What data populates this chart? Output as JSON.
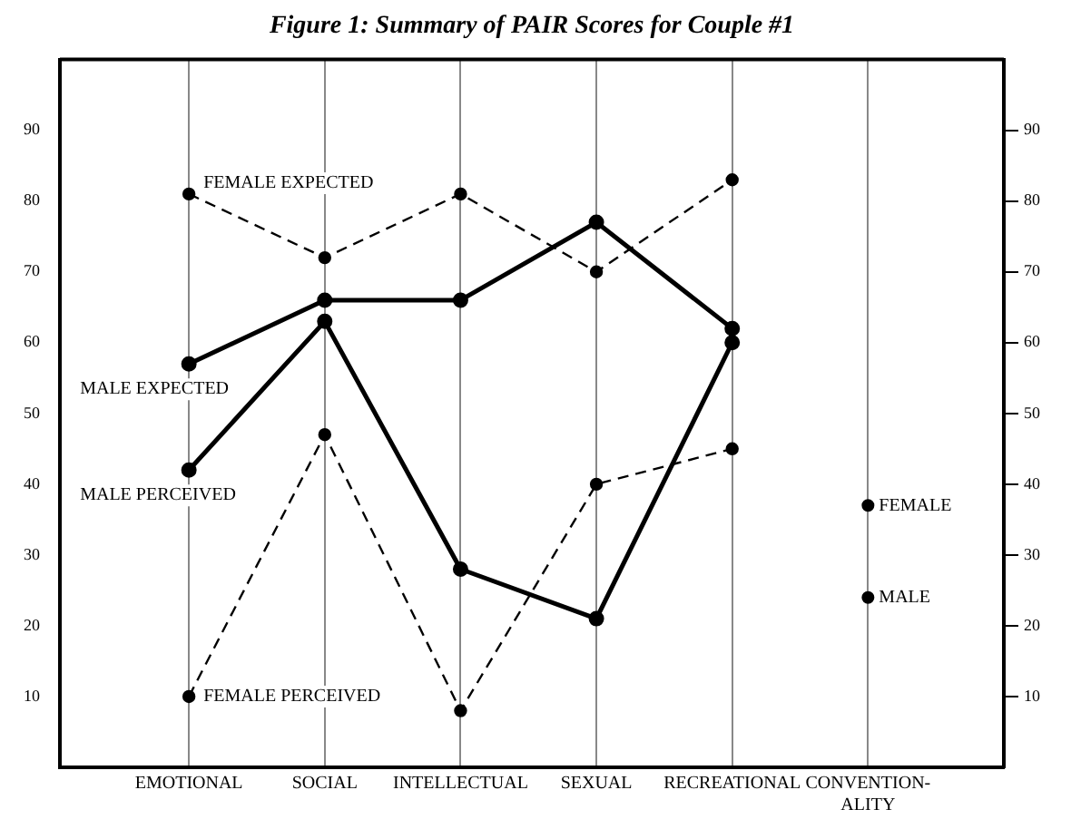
{
  "chart_data": {
    "type": "line",
    "title": "Figure 1: Summary of PAIR Scores for Couple #1",
    "categories": [
      "EMOTIONAL",
      "SOCIAL",
      "INTELLECTUAL",
      "SEXUAL",
      "RECREATIONAL",
      "CONVENTION-\nALITY"
    ],
    "series": [
      {
        "name": "FEMALE EXPECTED",
        "color": "#000000",
        "line_style": "dashed",
        "values": [
          81,
          72,
          81,
          70,
          83,
          null
        ]
      },
      {
        "name": "MALE EXPECTED",
        "color": "#000000",
        "line_style": "solid",
        "values": [
          57,
          66,
          66,
          77,
          62,
          null
        ]
      },
      {
        "name": "MALE PERCEIVED",
        "color": "#000000",
        "line_style": "solid",
        "values": [
          42,
          63,
          28,
          21,
          60,
          null
        ]
      },
      {
        "name": "FEMALE PERCEIVED",
        "color": "#000000",
        "line_style": "dashed",
        "values": [
          10,
          47,
          8,
          40,
          45,
          null
        ]
      },
      {
        "name": "FEMALE",
        "type": "scatter",
        "color": "#000000",
        "values": [
          null,
          null,
          null,
          null,
          null,
          37
        ]
      },
      {
        "name": "MALE",
        "type": "scatter",
        "color": "#000000",
        "values": [
          null,
          null,
          null,
          null,
          null,
          24
        ]
      }
    ],
    "ylim": [
      0,
      100
    ],
    "yticks": [
      10,
      20,
      30,
      40,
      50,
      60,
      70,
      80,
      90
    ],
    "y2lim": [
      0,
      100
    ],
    "y2ticks": [
      10,
      20,
      30,
      40,
      50,
      60,
      70,
      80,
      90
    ],
    "grid": "x",
    "legend": false,
    "marker": "circle"
  }
}
